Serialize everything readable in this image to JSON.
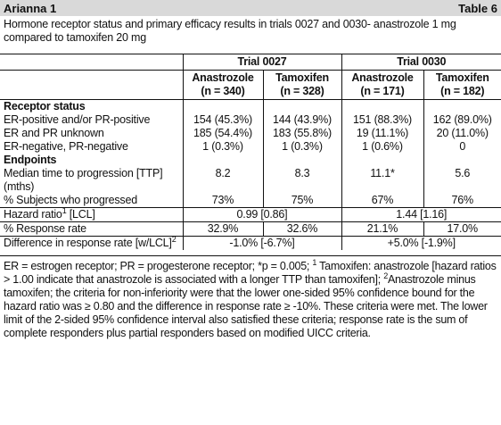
{
  "header": {
    "title": "Arianna 1",
    "table_label": "Table 6"
  },
  "caption": "Hormone receptor status and primary efficacy results in trials 0027 and 0030- anastrozole 1 mg compared to tamoxifen 20 mg",
  "table": {
    "groups": [
      "Trial 0027",
      "Trial 0030"
    ],
    "columns": [
      {
        "name": "Anastrozole",
        "n": "(n = 340)"
      },
      {
        "name": "Tamoxifen",
        "n": "(n = 328)"
      },
      {
        "name": "Anastrozole",
        "n": "(n = 171)"
      },
      {
        "name": "Tamoxifen",
        "n": "(n = 182)"
      }
    ],
    "rows": [
      {
        "section": "Receptor status"
      },
      {
        "label": [
          {
            "text": "ER-positive and/or PR-positive"
          }
        ],
        "cells": [
          "154 (45.3%)",
          "144 (43.9%)",
          "151 (88.3%)",
          "162 (89.0%)"
        ]
      },
      {
        "label": [
          {
            "text": "ER and PR unknown"
          }
        ],
        "cells": [
          "185 (54.4%)",
          "183 (55.8%)",
          "19 (11.1%)",
          "20 (11.0%)"
        ]
      },
      {
        "label": [
          {
            "text": "ER-negative, PR-negative"
          }
        ],
        "cells": [
          "1 (0.3%)",
          "1 (0.3%)",
          "1 (0.6%)",
          "0"
        ]
      },
      {
        "section": "Endpoints"
      },
      {
        "label": [
          {
            "text": "Median time to progression [TTP] (mths)"
          }
        ],
        "cells": [
          "8.2",
          "8.3",
          "11.1*",
          "5.6"
        ]
      },
      {
        "label": [
          {
            "text": "% Subjects who progressed"
          }
        ],
        "cells": [
          "73%",
          "75%",
          "67%",
          "76%"
        ]
      },
      {
        "label": [
          {
            "text": "Hazard ratio"
          },
          {
            "sup": "1"
          },
          {
            "text": " [LCL]"
          }
        ],
        "pair_cells": [
          "0.99 [0.86]",
          "1.44 [1.16]"
        ]
      },
      {
        "label": [
          {
            "text": "% Response rate"
          }
        ],
        "cells": [
          "32.9%",
          "32.6%",
          "21.1%",
          "17.0%"
        ]
      },
      {
        "label": [
          {
            "text": "Difference in response rate [w/LCL]"
          },
          {
            "sup": "2"
          }
        ],
        "pair_cells": [
          "-1.0% [-6.7%]",
          "+5.0% [-1.9%]"
        ]
      }
    ]
  },
  "footnote": [
    {
      "text": "ER = estrogen receptor; PR = progesterone receptor; *p = 0.005; "
    },
    {
      "sup": "1"
    },
    {
      "text": " Tamoxifen: anastrozole [hazard ratios > 1.00 indicate that anastrozole is associated with a longer TTP than tamoxifen]; "
    },
    {
      "sup": "2"
    },
    {
      "text": "Anastrozole minus tamoxifen; the criteria for non-inferiority were that the lower one-sided 95% confidence bound for the hazard ratio was ≥ 0.80 and the difference in response rate ≥ -10%. These criteria were met. The lower limit of the 2-sided 95% confidence interval also satisfied these criteria; response rate is the sum of complete responders plus partial responders based on modified UICC criteria."
    }
  ]
}
